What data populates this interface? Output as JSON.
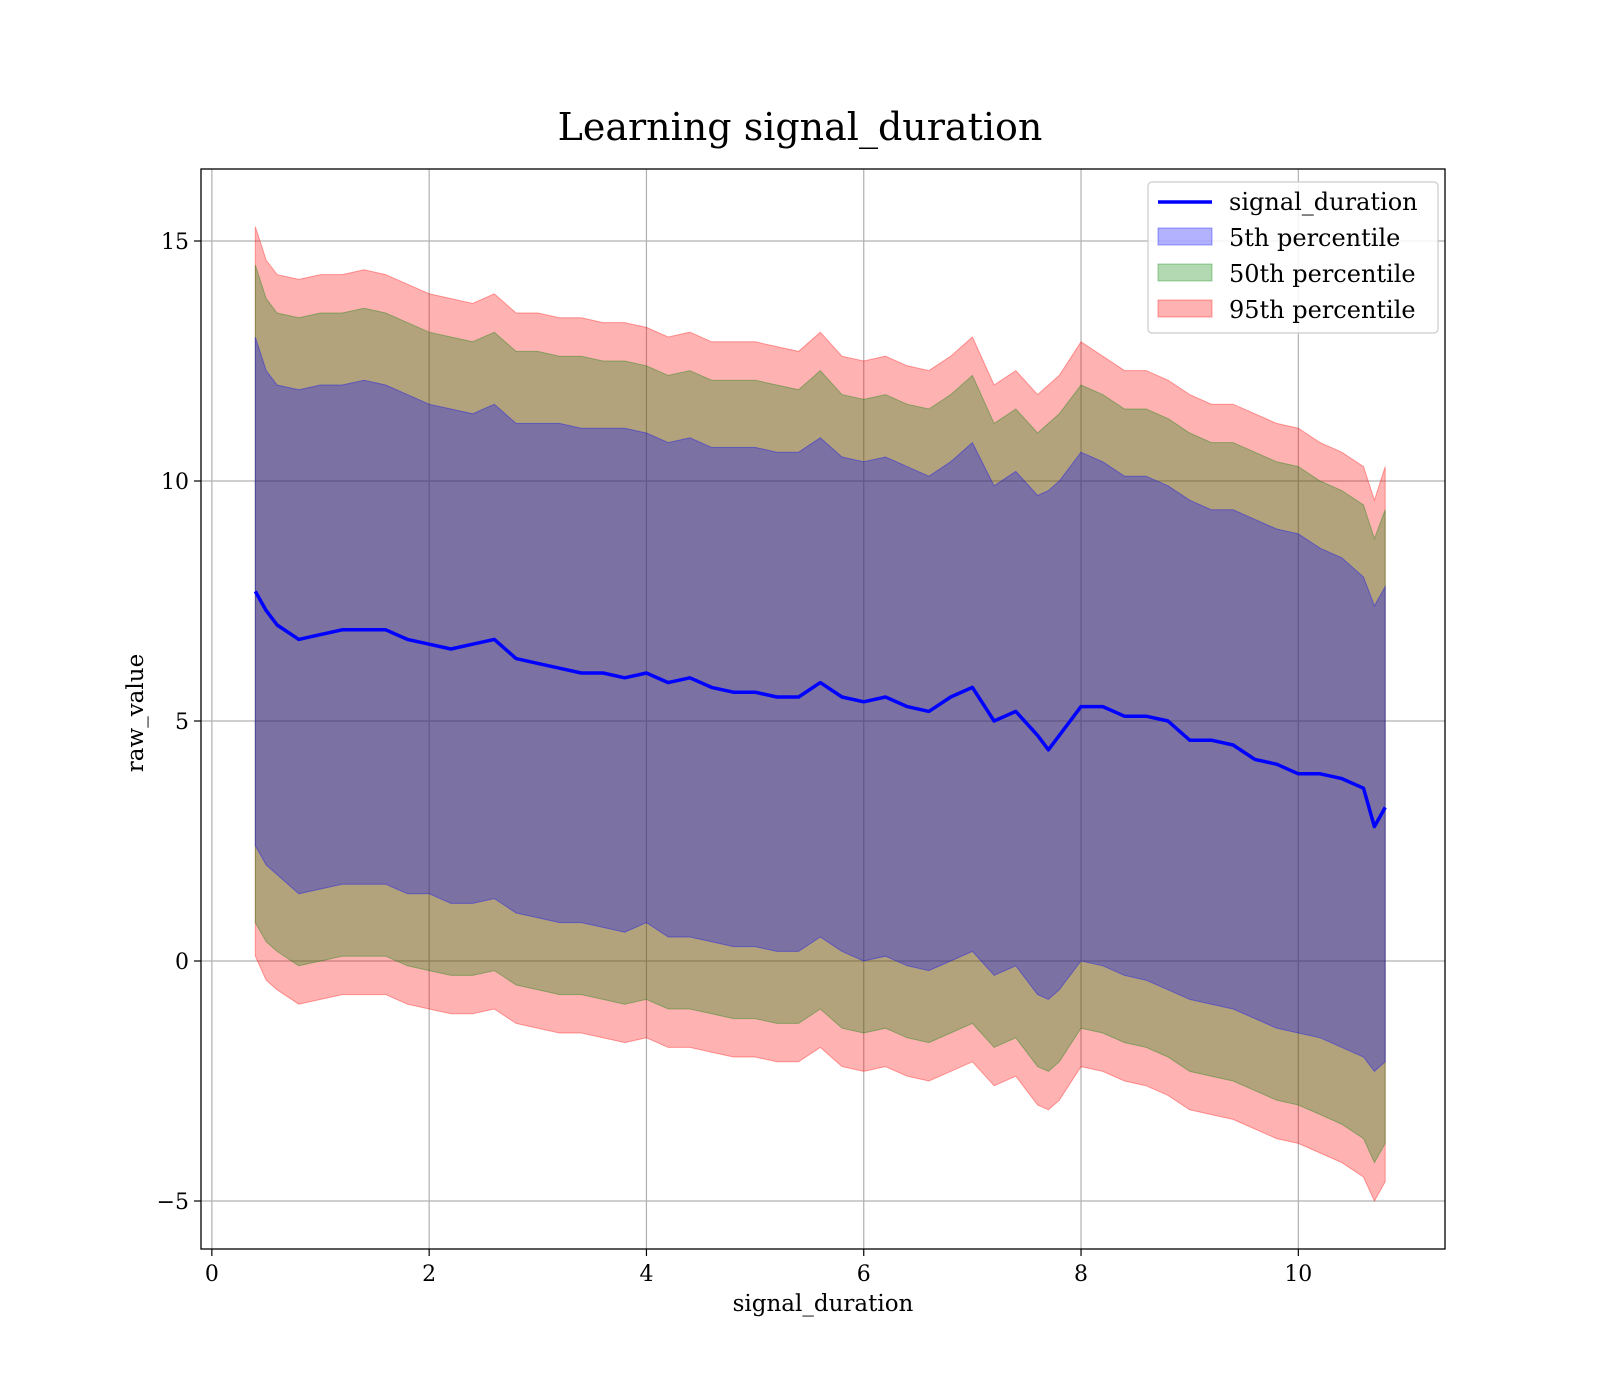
{
  "chart_data": {
    "type": "area",
    "title": "Learning signal_duration",
    "xlabel": "signal_duration",
    "ylabel": "raw_value",
    "xlim": [
      -0.1,
      11.35
    ],
    "ylim": [
      -6.0,
      16.5
    ],
    "xticks": [
      0,
      2,
      4,
      6,
      8,
      10
    ],
    "yticks": [
      -5,
      0,
      5,
      10,
      15
    ],
    "xtick_labels": [
      "0",
      "2",
      "4",
      "6",
      "8",
      "10"
    ],
    "ytick_labels": [
      "−5",
      "0",
      "5",
      "10",
      "15"
    ],
    "grid": true,
    "legend_position": "top-right",
    "x": [
      0.4,
      0.5,
      0.6,
      0.8,
      1.0,
      1.2,
      1.4,
      1.6,
      1.8,
      2.0,
      2.2,
      2.4,
      2.6,
      2.8,
      3.0,
      3.2,
      3.4,
      3.6,
      3.8,
      4.0,
      4.2,
      4.4,
      4.6,
      4.8,
      5.0,
      5.2,
      5.4,
      5.6,
      5.8,
      6.0,
      6.2,
      6.4,
      6.6,
      6.8,
      7.0,
      7.2,
      7.4,
      7.6,
      7.7,
      7.8,
      8.0,
      8.2,
      8.4,
      8.6,
      8.8,
      9.0,
      9.2,
      9.4,
      9.6,
      9.8,
      10.0,
      10.2,
      10.4,
      10.6,
      10.7,
      10.8
    ],
    "line_series": {
      "name": "signal_duration",
      "color": "#0000ff",
      "values": [
        7.7,
        7.3,
        7.0,
        6.7,
        6.8,
        6.9,
        6.9,
        6.9,
        6.7,
        6.6,
        6.5,
        6.6,
        6.7,
        6.3,
        6.2,
        6.1,
        6.0,
        6.0,
        5.9,
        6.0,
        5.8,
        5.9,
        5.7,
        5.6,
        5.6,
        5.5,
        5.5,
        5.8,
        5.5,
        5.4,
        5.5,
        5.3,
        5.2,
        5.5,
        5.7,
        5.0,
        5.2,
        4.7,
        4.4,
        4.7,
        5.3,
        5.3,
        5.1,
        5.1,
        5.0,
        4.6,
        4.6,
        4.5,
        4.2,
        4.1,
        3.9,
        3.9,
        3.8,
        3.6,
        2.8,
        3.2
      ]
    },
    "bands": [
      {
        "name": "5th percentile",
        "color": "#0000ff",
        "upper": [
          13.0,
          12.3,
          12.0,
          11.9,
          12.0,
          12.0,
          12.1,
          12.0,
          11.8,
          11.6,
          11.5,
          11.4,
          11.6,
          11.2,
          11.2,
          11.2,
          11.1,
          11.1,
          11.1,
          11.0,
          10.8,
          10.9,
          10.7,
          10.7,
          10.7,
          10.6,
          10.6,
          10.9,
          10.5,
          10.4,
          10.5,
          10.3,
          10.1,
          10.4,
          10.8,
          9.9,
          10.2,
          9.7,
          9.8,
          10.0,
          10.6,
          10.4,
          10.1,
          10.1,
          9.9,
          9.6,
          9.4,
          9.4,
          9.2,
          9.0,
          8.9,
          8.6,
          8.4,
          8.0,
          7.4,
          7.8
        ],
        "lower": [
          2.4,
          2.0,
          1.8,
          1.4,
          1.5,
          1.6,
          1.6,
          1.6,
          1.4,
          1.4,
          1.2,
          1.2,
          1.3,
          1.0,
          0.9,
          0.8,
          0.8,
          0.7,
          0.6,
          0.8,
          0.5,
          0.5,
          0.4,
          0.3,
          0.3,
          0.2,
          0.2,
          0.5,
          0.2,
          0.0,
          0.1,
          -0.1,
          -0.2,
          0.0,
          0.2,
          -0.3,
          -0.1,
          -0.7,
          -0.8,
          -0.6,
          0.0,
          -0.1,
          -0.3,
          -0.4,
          -0.6,
          -0.8,
          -0.9,
          -1.0,
          -1.2,
          -1.4,
          -1.5,
          -1.6,
          -1.8,
          -2.0,
          -2.3,
          -2.1
        ]
      },
      {
        "name": "50th percentile",
        "color": "#008000",
        "upper": [
          14.5,
          13.8,
          13.5,
          13.4,
          13.5,
          13.5,
          13.6,
          13.5,
          13.3,
          13.1,
          13.0,
          12.9,
          13.1,
          12.7,
          12.7,
          12.6,
          12.6,
          12.5,
          12.5,
          12.4,
          12.2,
          12.3,
          12.1,
          12.1,
          12.1,
          12.0,
          11.9,
          12.3,
          11.8,
          11.7,
          11.8,
          11.6,
          11.5,
          11.8,
          12.2,
          11.2,
          11.5,
          11.0,
          11.2,
          11.4,
          12.0,
          11.8,
          11.5,
          11.5,
          11.3,
          11.0,
          10.8,
          10.8,
          10.6,
          10.4,
          10.3,
          10.0,
          9.8,
          9.5,
          8.8,
          9.4
        ],
        "lower": [
          0.8,
          0.4,
          0.2,
          -0.1,
          0.0,
          0.1,
          0.1,
          0.1,
          -0.1,
          -0.2,
          -0.3,
          -0.3,
          -0.2,
          -0.5,
          -0.6,
          -0.7,
          -0.7,
          -0.8,
          -0.9,
          -0.8,
          -1.0,
          -1.0,
          -1.1,
          -1.2,
          -1.2,
          -1.3,
          -1.3,
          -1.0,
          -1.4,
          -1.5,
          -1.4,
          -1.6,
          -1.7,
          -1.5,
          -1.3,
          -1.8,
          -1.6,
          -2.2,
          -2.3,
          -2.1,
          -1.4,
          -1.5,
          -1.7,
          -1.8,
          -2.0,
          -2.3,
          -2.4,
          -2.5,
          -2.7,
          -2.9,
          -3.0,
          -3.2,
          -3.4,
          -3.7,
          -4.2,
          -3.8
        ]
      },
      {
        "name": "95th percentile",
        "color": "#ff0000",
        "upper": [
          15.3,
          14.6,
          14.3,
          14.2,
          14.3,
          14.3,
          14.4,
          14.3,
          14.1,
          13.9,
          13.8,
          13.7,
          13.9,
          13.5,
          13.5,
          13.4,
          13.4,
          13.3,
          13.3,
          13.2,
          13.0,
          13.1,
          12.9,
          12.9,
          12.9,
          12.8,
          12.7,
          13.1,
          12.6,
          12.5,
          12.6,
          12.4,
          12.3,
          12.6,
          13.0,
          12.0,
          12.3,
          11.8,
          12.0,
          12.2,
          12.9,
          12.6,
          12.3,
          12.3,
          12.1,
          11.8,
          11.6,
          11.6,
          11.4,
          11.2,
          11.1,
          10.8,
          10.6,
          10.3,
          9.6,
          10.3
        ],
        "lower": [
          0.1,
          -0.4,
          -0.6,
          -0.9,
          -0.8,
          -0.7,
          -0.7,
          -0.7,
          -0.9,
          -1.0,
          -1.1,
          -1.1,
          -1.0,
          -1.3,
          -1.4,
          -1.5,
          -1.5,
          -1.6,
          -1.7,
          -1.6,
          -1.8,
          -1.8,
          -1.9,
          -2.0,
          -2.0,
          -2.1,
          -2.1,
          -1.8,
          -2.2,
          -2.3,
          -2.2,
          -2.4,
          -2.5,
          -2.3,
          -2.1,
          -2.6,
          -2.4,
          -3.0,
          -3.1,
          -2.9,
          -2.2,
          -2.3,
          -2.5,
          -2.6,
          -2.8,
          -3.1,
          -3.2,
          -3.3,
          -3.5,
          -3.7,
          -3.8,
          -4.0,
          -4.2,
          -4.5,
          -5.0,
          -4.6
        ]
      }
    ]
  }
}
